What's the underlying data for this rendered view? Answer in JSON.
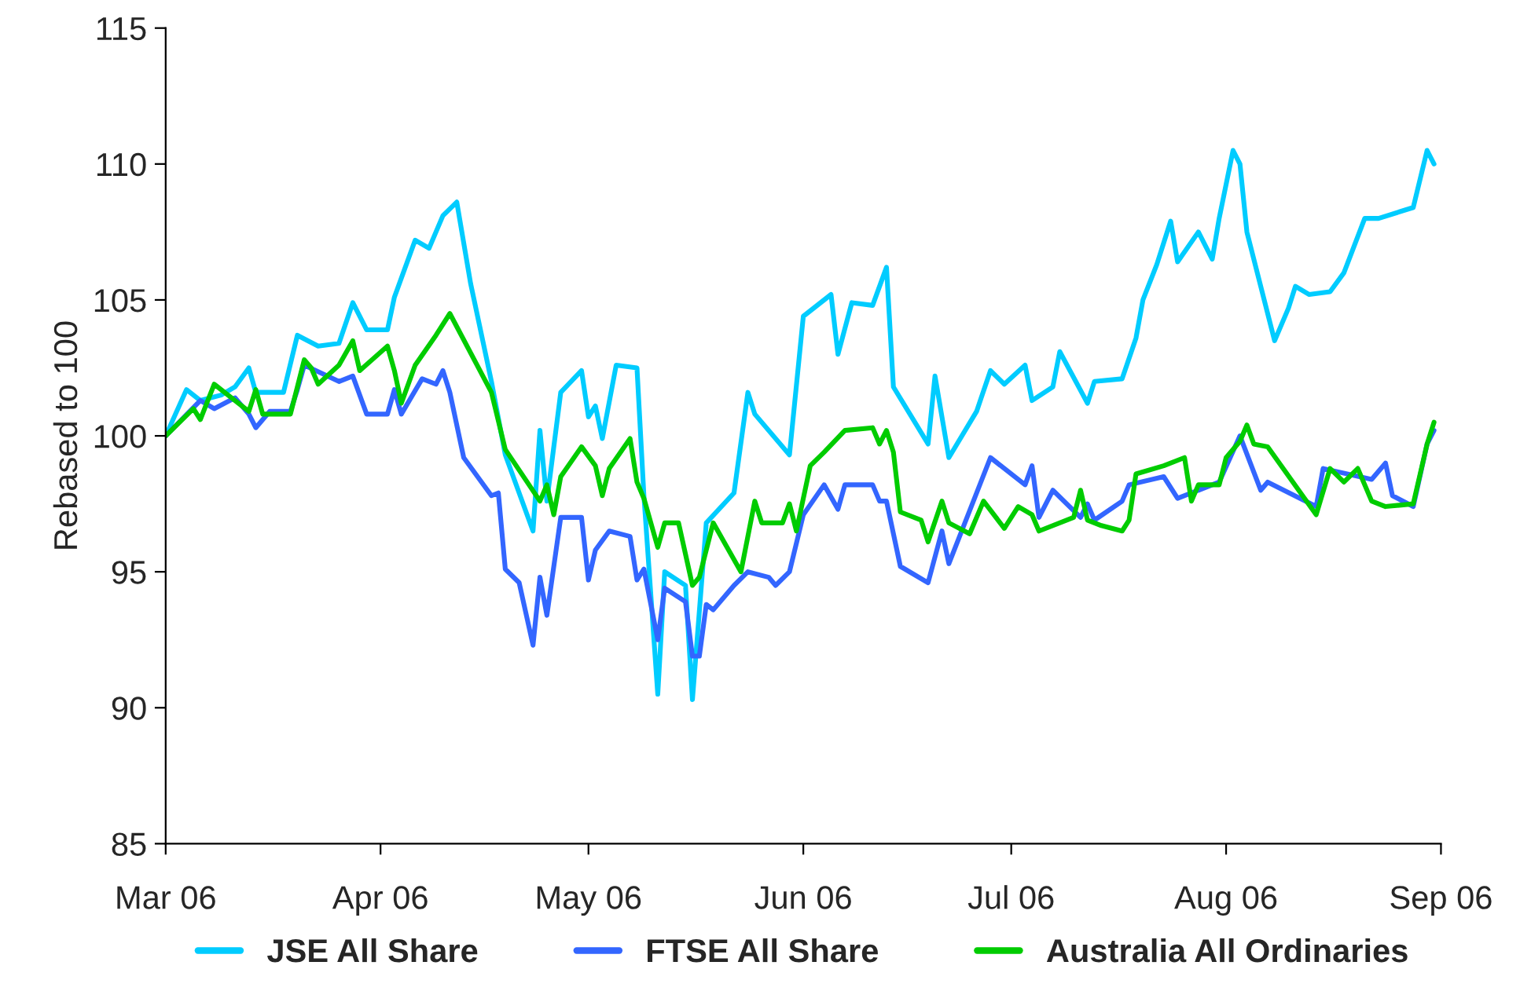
{
  "chart_data": {
    "type": "line",
    "ylabel": "Rebased to 100",
    "xlim": [
      "2006-03-01",
      "2006-09-01"
    ],
    "xticks": [
      {
        "value": "2006-03-01",
        "label": "Mar 06"
      },
      {
        "value": "2006-04-01",
        "label": "Apr 06"
      },
      {
        "value": "2006-05-01",
        "label": "May 06"
      },
      {
        "value": "2006-06-01",
        "label": "Jun 06"
      },
      {
        "value": "2006-07-01",
        "label": "Jul 06"
      },
      {
        "value": "2006-08-01",
        "label": "Aug 06"
      },
      {
        "value": "2006-09-01",
        "label": "Sep 06"
      }
    ],
    "ylim": [
      85,
      115
    ],
    "yticks": [
      85,
      90,
      95,
      100,
      105,
      110,
      115
    ],
    "grid": false,
    "legend": "bottom",
    "marker": "none",
    "line_style": "solid",
    "series": [
      {
        "name": "JSE All Share",
        "color": "#00ccff",
        "x": [
          "2006-03-01",
          "2006-03-04",
          "2006-03-06",
          "2006-03-09",
          "2006-03-11",
          "2006-03-13",
          "2006-03-14",
          "2006-03-18",
          "2006-03-20",
          "2006-03-23",
          "2006-03-26",
          "2006-03-28",
          "2006-03-30",
          "2006-04-02",
          "2006-04-03",
          "2006-04-06",
          "2006-04-08",
          "2006-04-10",
          "2006-04-12",
          "2006-04-14",
          "2006-04-17",
          "2006-04-19",
          "2006-04-23",
          "2006-04-24",
          "2006-04-25",
          "2006-04-27",
          "2006-04-30",
          "2006-05-01",
          "2006-05-02",
          "2006-05-03",
          "2006-05-05",
          "2006-05-08",
          "2006-05-09",
          "2006-05-11",
          "2006-05-12",
          "2006-05-15",
          "2006-05-16",
          "2006-05-18",
          "2006-05-22",
          "2006-05-24",
          "2006-05-25",
          "2006-05-30",
          "2006-06-01",
          "2006-06-05",
          "2006-06-06",
          "2006-06-08",
          "2006-06-11",
          "2006-06-13",
          "2006-06-14",
          "2006-06-19",
          "2006-06-20",
          "2006-06-22",
          "2006-06-26",
          "2006-06-28",
          "2006-06-30",
          "2006-07-03",
          "2006-07-04",
          "2006-07-07",
          "2006-07-08",
          "2006-07-12",
          "2006-07-13",
          "2006-07-17",
          "2006-07-19",
          "2006-07-20",
          "2006-07-22",
          "2006-07-24",
          "2006-07-25",
          "2006-07-28",
          "2006-07-30",
          "2006-07-31",
          "2006-08-02",
          "2006-08-03",
          "2006-08-04",
          "2006-08-08",
          "2006-08-10",
          "2006-08-11",
          "2006-08-13",
          "2006-08-16",
          "2006-08-18",
          "2006-08-21",
          "2006-08-23",
          "2006-08-28",
          "2006-08-30",
          "2006-08-31"
        ],
        "values": [
          100.0,
          101.7,
          101.3,
          101.5,
          101.8,
          102.5,
          101.6,
          101.6,
          103.7,
          103.3,
          103.4,
          104.9,
          103.9,
          103.9,
          105.1,
          107.2,
          106.9,
          108.1,
          108.6,
          105.6,
          102.0,
          99.3,
          96.5,
          100.2,
          97.6,
          101.6,
          102.4,
          100.7,
          101.1,
          99.9,
          102.6,
          102.5,
          97.8,
          90.5,
          95.0,
          94.5,
          90.3,
          96.8,
          97.9,
          101.6,
          100.8,
          99.3,
          104.4,
          105.2,
          103.0,
          104.9,
          104.8,
          106.2,
          101.8,
          99.7,
          102.2,
          99.2,
          100.9,
          102.4,
          101.9,
          102.6,
          101.3,
          101.8,
          103.1,
          101.2,
          102.0,
          102.1,
          103.6,
          105.0,
          106.3,
          107.9,
          106.4,
          107.5,
          106.5,
          108.0,
          110.5,
          110.0,
          107.5,
          103.5,
          104.7,
          105.5,
          105.2,
          105.3,
          106.0,
          108.0,
          108.0,
          108.4,
          110.5,
          110.0
        ]
      },
      {
        "name": "FTSE All Share",
        "color": "#3366ff",
        "x": [
          "2006-03-01",
          "2006-03-06",
          "2006-03-08",
          "2006-03-11",
          "2006-03-13",
          "2006-03-14",
          "2006-03-16",
          "2006-03-19",
          "2006-03-20",
          "2006-03-21",
          "2006-03-26",
          "2006-03-28",
          "2006-03-30",
          "2006-04-02",
          "2006-04-03",
          "2006-04-04",
          "2006-04-07",
          "2006-04-09",
          "2006-04-10",
          "2006-04-11",
          "2006-04-13",
          "2006-04-17",
          "2006-04-18",
          "2006-04-19",
          "2006-04-21",
          "2006-04-23",
          "2006-04-24",
          "2006-04-25",
          "2006-04-27",
          "2006-04-30",
          "2006-05-01",
          "2006-05-02",
          "2006-05-04",
          "2006-05-07",
          "2006-05-08",
          "2006-05-09",
          "2006-05-11",
          "2006-05-12",
          "2006-05-15",
          "2006-05-16",
          "2006-05-17",
          "2006-05-18",
          "2006-05-19",
          "2006-05-22",
          "2006-05-24",
          "2006-05-27",
          "2006-05-28",
          "2006-05-30",
          "2006-06-01",
          "2006-06-04",
          "2006-06-06",
          "2006-06-07",
          "2006-06-11",
          "2006-06-12",
          "2006-06-13",
          "2006-06-15",
          "2006-06-19",
          "2006-06-21",
          "2006-06-22",
          "2006-06-28",
          "2006-07-03",
          "2006-07-04",
          "2006-07-05",
          "2006-07-07",
          "2006-07-11",
          "2006-07-12",
          "2006-07-13",
          "2006-07-17",
          "2006-07-18",
          "2006-07-23",
          "2006-07-25",
          "2006-07-31",
          "2006-08-03",
          "2006-08-06",
          "2006-08-07",
          "2006-08-14",
          "2006-08-15",
          "2006-08-22",
          "2006-08-24",
          "2006-08-25",
          "2006-08-28",
          "2006-08-30",
          "2006-08-31"
        ],
        "values": [
          100.0,
          101.3,
          101.0,
          101.4,
          100.8,
          100.3,
          100.9,
          100.9,
          101.7,
          102.6,
          102.0,
          102.2,
          100.8,
          100.8,
          101.7,
          100.8,
          102.1,
          101.9,
          102.4,
          101.6,
          99.2,
          97.8,
          97.9,
          95.1,
          94.6,
          92.3,
          94.8,
          93.4,
          97.0,
          97.0,
          94.7,
          95.8,
          96.5,
          96.3,
          94.7,
          95.1,
          92.5,
          94.4,
          93.9,
          91.9,
          91.9,
          93.8,
          93.6,
          94.5,
          95.0,
          94.8,
          94.5,
          95.0,
          97.1,
          98.2,
          97.3,
          98.2,
          98.2,
          97.6,
          97.6,
          95.2,
          94.6,
          96.5,
          95.3,
          99.2,
          98.2,
          98.9,
          97.0,
          98.0,
          97.0,
          97.5,
          96.9,
          97.6,
          98.2,
          98.5,
          97.7,
          98.3,
          100.0,
          98.0,
          98.3,
          97.4,
          98.8,
          98.4,
          99.0,
          97.8,
          97.4,
          99.7,
          100.2
        ]
      },
      {
        "name": "Australia All Ordinaries",
        "color": "#00cc00",
        "x": [
          "2006-03-01",
          "2006-03-05",
          "2006-03-06",
          "2006-03-08",
          "2006-03-11",
          "2006-03-13",
          "2006-03-14",
          "2006-03-15",
          "2006-03-19",
          "2006-03-21",
          "2006-03-22",
          "2006-03-23",
          "2006-03-26",
          "2006-03-28",
          "2006-03-29",
          "2006-04-02",
          "2006-04-03",
          "2006-04-04",
          "2006-04-06",
          "2006-04-09",
          "2006-04-11",
          "2006-04-17",
          "2006-04-19",
          "2006-04-24",
          "2006-04-25",
          "2006-04-26",
          "2006-04-27",
          "2006-04-30",
          "2006-05-02",
          "2006-05-03",
          "2006-05-04",
          "2006-05-07",
          "2006-05-08",
          "2006-05-09",
          "2006-05-11",
          "2006-05-12",
          "2006-05-14",
          "2006-05-16",
          "2006-05-17",
          "2006-05-19",
          "2006-05-21",
          "2006-05-23",
          "2006-05-25",
          "2006-05-26",
          "2006-05-29",
          "2006-05-30",
          "2006-05-31",
          "2006-06-02",
          "2006-06-04",
          "2006-06-07",
          "2006-06-11",
          "2006-06-12",
          "2006-06-13",
          "2006-06-14",
          "2006-06-15",
          "2006-06-18",
          "2006-06-19",
          "2006-06-21",
          "2006-06-22",
          "2006-06-25",
          "2006-06-27",
          "2006-06-30",
          "2006-07-02",
          "2006-07-04",
          "2006-07-05",
          "2006-07-10",
          "2006-07-11",
          "2006-07-12",
          "2006-07-14",
          "2006-07-17",
          "2006-07-18",
          "2006-07-19",
          "2006-07-23",
          "2006-07-26",
          "2006-07-27",
          "2006-07-28",
          "2006-07-31",
          "2006-08-01",
          "2006-08-03",
          "2006-08-04",
          "2006-08-05",
          "2006-08-07",
          "2006-08-14",
          "2006-08-16",
          "2006-08-18",
          "2006-08-20",
          "2006-08-22",
          "2006-08-24",
          "2006-08-28",
          "2006-08-30",
          "2006-08-31"
        ],
        "values": [
          100.0,
          101.0,
          100.6,
          101.9,
          101.3,
          100.9,
          101.7,
          100.8,
          100.8,
          102.8,
          102.5,
          101.9,
          102.6,
          103.5,
          102.4,
          103.3,
          102.4,
          101.2,
          102.6,
          103.7,
          104.5,
          101.6,
          99.5,
          97.6,
          98.2,
          97.1,
          98.5,
          99.6,
          98.9,
          97.8,
          98.8,
          99.9,
          98.3,
          97.7,
          95.9,
          96.8,
          96.8,
          94.5,
          94.8,
          96.8,
          95.9,
          95.0,
          97.6,
          96.8,
          96.8,
          97.5,
          96.5,
          98.9,
          99.4,
          100.2,
          100.3,
          99.7,
          100.2,
          99.4,
          97.2,
          96.9,
          96.1,
          97.6,
          96.8,
          96.4,
          97.6,
          96.6,
          97.4,
          97.1,
          96.5,
          97.0,
          98.0,
          96.9,
          96.7,
          96.5,
          96.9,
          98.6,
          98.9,
          99.2,
          97.6,
          98.2,
          98.2,
          99.2,
          99.8,
          100.4,
          99.7,
          99.6,
          97.1,
          98.8,
          98.3,
          98.8,
          97.6,
          97.4,
          97.5,
          99.7,
          100.5
        ]
      }
    ]
  }
}
